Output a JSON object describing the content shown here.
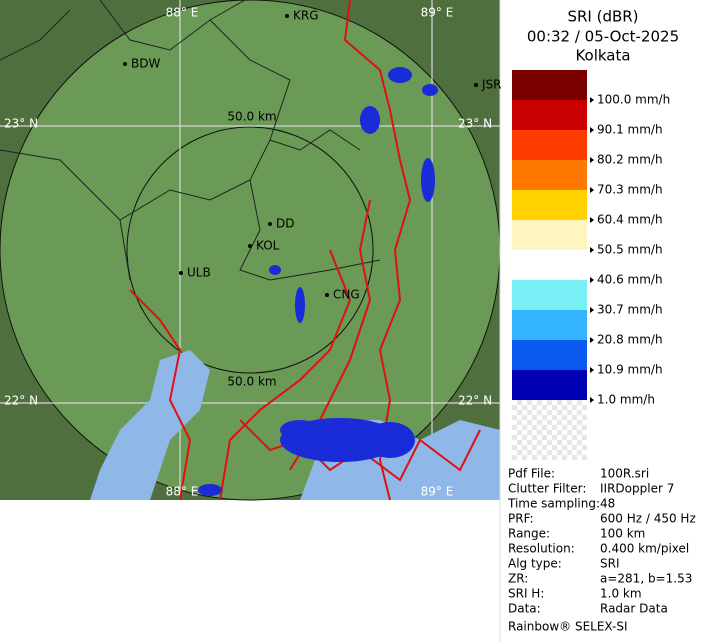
{
  "header": {
    "product": "SRI (dBR)",
    "datetime": "00:32 / 05-Oct-2025",
    "site": "Kolkata"
  },
  "map": {
    "grid_labels": {
      "lon_top": [
        "88° E",
        "89° E"
      ],
      "lon_bottom": [
        "88° E",
        "89° E"
      ],
      "lat_left": [
        "23° N",
        "22° N"
      ],
      "lat_right": [
        "23° N",
        "22° N"
      ]
    },
    "range_labels": [
      "50.0 km",
      "50.0 km"
    ],
    "cities": [
      "BDW",
      "KRG",
      "JSR",
      "DD",
      "KOL",
      "ULB",
      "CNG"
    ]
  },
  "legend": {
    "colors": [
      "#7a0000",
      "#c80000",
      "#ff3c00",
      "#ff7800",
      "#ffd200",
      "#fff5c0",
      "#ffffff",
      "#78f0f5",
      "#32b4ff",
      "#0a5af0",
      "#0000b4"
    ],
    "labels": [
      "100.0 mm/h",
      "90.1 mm/h",
      "80.2 mm/h",
      "70.3 mm/h",
      "60.4 mm/h",
      "50.5 mm/h",
      "40.6 mm/h",
      "30.7 mm/h",
      "20.8 mm/h",
      "10.9 mm/h",
      "1.0 mm/h"
    ]
  },
  "info": {
    "rows": [
      [
        "Pdf File:",
        "100R.sri"
      ],
      [
        "Clutter Filter:",
        "IIRDoppler 7"
      ],
      [
        "Time sampling:",
        "48"
      ],
      [
        "PRF:",
        "600 Hz / 450 Hz"
      ],
      [
        "Range:",
        "100 km"
      ],
      [
        "Resolution:",
        "0.400 km/pixel"
      ],
      [
        "Alg type:",
        "SRI"
      ],
      [
        "ZR:",
        "a=281, b=1.53"
      ],
      [
        "SRI H:",
        "1.0 km"
      ],
      [
        "Data:",
        "Radar Data"
      ]
    ],
    "footer": "Rainbow® SELEX-SI"
  }
}
